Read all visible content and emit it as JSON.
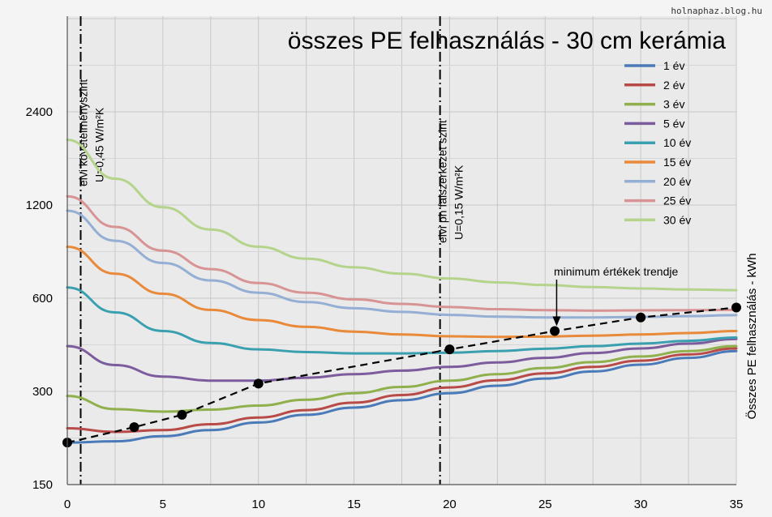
{
  "watermark": "holnaphaz.blog.hu",
  "chart_data": {
    "type": "line",
    "title": "összes PE felhasználás - 30 cm kerámia",
    "xlabel": "",
    "ylabel": "Összes PE felhasználás - kWh",
    "y_scale": "log",
    "xlim": [
      0,
      35
    ],
    "ylim": [
      150,
      4800
    ],
    "x_ticks": [
      0,
      5,
      10,
      15,
      20,
      25,
      30,
      35
    ],
    "y_ticks": [
      150,
      300,
      600,
      1200,
      2400
    ],
    "grid": true,
    "legend_position": "right",
    "x": [
      0,
      2.5,
      5,
      7.5,
      10,
      12.5,
      15,
      17.5,
      20,
      22.5,
      25,
      27.5,
      30,
      32.5,
      35
    ],
    "series": [
      {
        "name": "1 év",
        "color": "#4a7ab8",
        "values": [
          205,
          207,
          215,
          225,
          238,
          252,
          266,
          281,
          296,
          313,
          330,
          348,
          366,
          385,
          405
        ]
      },
      {
        "name": "2 év",
        "color": "#b84a48",
        "values": [
          228,
          222,
          225,
          235,
          247,
          261,
          276,
          292,
          309,
          326,
          343,
          360,
          377,
          395,
          413
        ]
      },
      {
        "name": "3 év",
        "color": "#8fb04c",
        "values": [
          290,
          263,
          258,
          262,
          270,
          282,
          296,
          310,
          325,
          341,
          357,
          373,
          389,
          405,
          420
        ]
      },
      {
        "name": "5 év",
        "color": "#7d5c9e",
        "values": [
          420,
          365,
          335,
          325,
          325,
          332,
          341,
          350,
          360,
          372,
          385,
          399,
          413,
          428,
          443
        ]
      },
      {
        "name": "10 év",
        "color": "#3aa0b0",
        "values": [
          650,
          540,
          470,
          430,
          410,
          402,
          398,
          398,
          400,
          405,
          412,
          420,
          428,
          437,
          448
        ]
      },
      {
        "name": "15 év",
        "color": "#e88a3a",
        "values": [
          880,
          720,
          620,
          550,
          510,
          485,
          468,
          458,
          452,
          450,
          451,
          454,
          458,
          463,
          470
        ]
      },
      {
        "name": "20 év",
        "color": "#94aed4",
        "values": [
          1150,
          920,
          780,
          685,
          625,
          583,
          557,
          542,
          530,
          523,
          520,
          520,
          522,
          525,
          529
        ]
      },
      {
        "name": "25 év",
        "color": "#d89494",
        "values": [
          1280,
          1020,
          855,
          745,
          672,
          625,
          595,
          575,
          562,
          553,
          549,
          547,
          548,
          549,
          550
        ]
      },
      {
        "name": "30 év",
        "color": "#b4d48c",
        "values": [
          1950,
          1460,
          1180,
          1000,
          880,
          805,
          755,
          720,
          695,
          675,
          662,
          652,
          645,
          640,
          637
        ]
      }
    ],
    "trend": {
      "label": "minimum értékek trendje",
      "x": [
        0,
        3.5,
        6,
        10,
        20,
        25.5,
        30,
        35
      ],
      "values": [
        205,
        230,
        252,
        318,
        410,
        470,
        520,
        560
      ]
    },
    "reference_lines": [
      {
        "x": 0.7,
        "label_top": "elvi követelményszint",
        "label_bottom": "U=0,45 W/m²K"
      },
      {
        "x": 19.5,
        "label_top": "elvi ph falszerkezet szint",
        "label_bottom": "U=0,15 W/m²K"
      }
    ]
  }
}
